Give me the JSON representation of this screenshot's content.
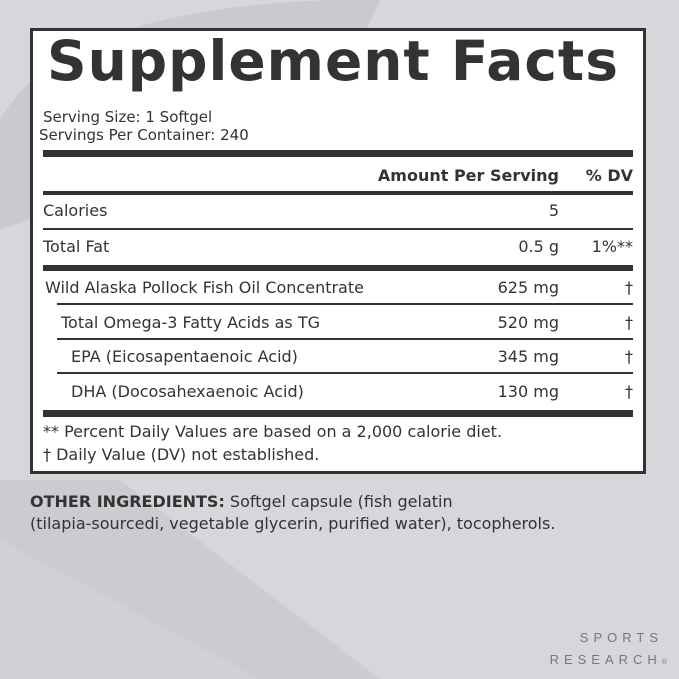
{
  "title": "Supplement Facts",
  "serving_size": "Serving Size: 1 Softgel",
  "servings_per_container": "Servings Per Container: 240",
  "header": {
    "amount": "Amount Per Serving",
    "dv": "% DV"
  },
  "rows": [
    {
      "name": "Calories",
      "amount": "5",
      "dv": ""
    },
    {
      "name": "Total Fat",
      "amount": "0.5 g",
      "dv": "1%**"
    },
    {
      "name": "Wild Alaska Pollock Fish Oil Concentrate",
      "amount": "625 mg",
      "dv": "†"
    },
    {
      "name": "Total Omega-3 Fatty Acids as TG",
      "amount": "520 mg",
      "dv": "†"
    },
    {
      "name": "EPA (Eicosapentaenoic Acid)",
      "amount": "345 mg",
      "dv": "†"
    },
    {
      "name": "DHA (Docosahexaenoic Acid)",
      "amount": "130 mg",
      "dv": "†"
    }
  ],
  "footnotes": [
    "** Percent Daily Values are based on a 2,000 calorie diet.",
    "†  Daily Value (DV) not established."
  ],
  "other_ingredients": {
    "label": "OTHER INGREDIENTS:",
    "line1": " Softgel capsule (fish gelatin",
    "line2": "(tilapia-sourcedi, vegetable glycerin, purified water), tocopherols."
  },
  "brand": {
    "line1": "SPORTS",
    "line2": "RESEARCH",
    "mark": "®"
  }
}
